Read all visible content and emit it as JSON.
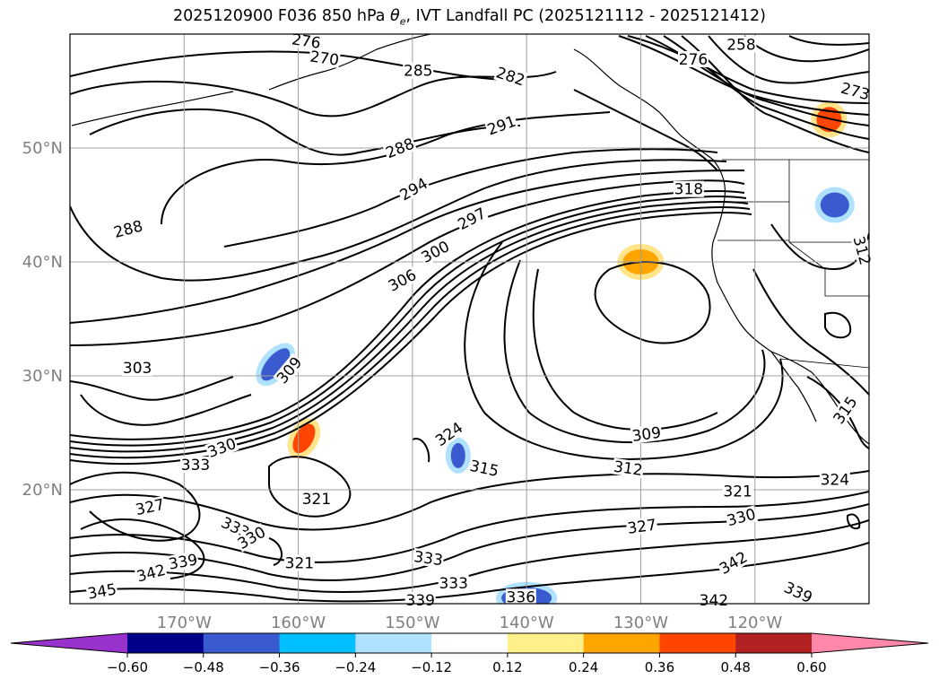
{
  "title": {
    "prefix": "2025120900 F036 850 hPa ",
    "symbol": "θ",
    "subscript": "e",
    "suffix": ", IVT Landfall PC (2025121112 - 2025121412)"
  },
  "map": {
    "lon_range": [
      -180,
      -110
    ],
    "lat_range": [
      10,
      60
    ],
    "lon_gridlines": [
      -170,
      -160,
      -150,
      -140,
      -130,
      -120
    ],
    "lat_gridlines": [
      20,
      30,
      40,
      50
    ],
    "lon_labels": [
      "170°W",
      "160°W",
      "150°W",
      "140°W",
      "130°W",
      "120°W"
    ],
    "lat_labels": [
      "20°N",
      "30°N",
      "40°N",
      "50°N"
    ],
    "axis_label_color": "#808080",
    "contour_color": "#000000",
    "contour_labels": [
      {
        "text": "270",
        "lon": -157.7,
        "lat": 57.9,
        "rot": -8
      },
      {
        "text": "276",
        "lon": -159.3,
        "lat": 59.4,
        "rot": -8
      },
      {
        "text": "285",
        "lon": -149.5,
        "lat": 56.8,
        "rot": 0
      },
      {
        "text": "282",
        "lon": -141.4,
        "lat": 56.3,
        "rot": -18
      },
      {
        "text": "258",
        "lon": -121.2,
        "lat": 59.1,
        "rot": 0
      },
      {
        "text": "276",
        "lon": -125.4,
        "lat": 57.8,
        "rot": 0
      },
      {
        "text": "273",
        "lon": -111.2,
        "lat": 55.0,
        "rot": -15
      },
      {
        "text": "291",
        "lon": -142.2,
        "lat": 52.0,
        "rot": 20
      },
      {
        "text": "288",
        "lon": -151.1,
        "lat": 50.0,
        "rot": 22
      },
      {
        "text": "294",
        "lon": -149.9,
        "lat": 46.4,
        "rot": 30
      },
      {
        "text": "318",
        "lon": -125.8,
        "lat": 46.4,
        "rot": 0
      },
      {
        "text": "288",
        "lon": -174.9,
        "lat": 42.9,
        "rot": 15
      },
      {
        "text": "297",
        "lon": -144.8,
        "lat": 43.8,
        "rot": 28
      },
      {
        "text": "300",
        "lon": -148.0,
        "lat": 40.9,
        "rot": 28
      },
      {
        "text": "306",
        "lon": -150.9,
        "lat": 38.4,
        "rot": 28
      },
      {
        "text": "312",
        "lon": -110.6,
        "lat": 41.0,
        "rot": -75
      },
      {
        "text": "303",
        "lon": -174.1,
        "lat": 30.7,
        "rot": 0
      },
      {
        "text": "309",
        "lon": -160.8,
        "lat": 30.5,
        "rot": 50
      },
      {
        "text": "324",
        "lon": -146.8,
        "lat": 24.9,
        "rot": 35
      },
      {
        "text": "309",
        "lon": -129.5,
        "lat": 24.9,
        "rot": 8
      },
      {
        "text": "315",
        "lon": -112.1,
        "lat": 27.0,
        "rot": 55
      },
      {
        "text": "330",
        "lon": -166.7,
        "lat": 23.7,
        "rot": 20
      },
      {
        "text": "333",
        "lon": -169.0,
        "lat": 22.2,
        "rot": 0
      },
      {
        "text": "315",
        "lon": -143.7,
        "lat": 21.9,
        "rot": -12
      },
      {
        "text": "312",
        "lon": -131.1,
        "lat": 21.9,
        "rot": -8
      },
      {
        "text": "321",
        "lon": -121.5,
        "lat": 19.9,
        "rot": 0
      },
      {
        "text": "324",
        "lon": -113.0,
        "lat": 20.9,
        "rot": 0
      },
      {
        "text": "321",
        "lon": -158.4,
        "lat": 19.2,
        "rot": 0
      },
      {
        "text": "327",
        "lon": -173.0,
        "lat": 18.5,
        "rot": 12
      },
      {
        "text": "327",
        "lon": -129.9,
        "lat": 16.8,
        "rot": 8
      },
      {
        "text": "330",
        "lon": -121.2,
        "lat": 17.6,
        "rot": 15
      },
      {
        "text": "333",
        "lon": -165.5,
        "lat": 16.7,
        "rot": -25
      },
      {
        "text": "330",
        "lon": -164.1,
        "lat": 15.8,
        "rot": 30
      },
      {
        "text": "321",
        "lon": -159.9,
        "lat": 13.6,
        "rot": 0
      },
      {
        "text": "333",
        "lon": -148.6,
        "lat": 14.0,
        "rot": -8
      },
      {
        "text": "339",
        "lon": -170.1,
        "lat": 13.7,
        "rot": 10
      },
      {
        "text": "342",
        "lon": -172.9,
        "lat": 12.7,
        "rot": 15
      },
      {
        "text": "345",
        "lon": -177.2,
        "lat": 11.1,
        "rot": 10
      },
      {
        "text": "342",
        "lon": -121.9,
        "lat": 13.6,
        "rot": 30
      },
      {
        "text": "333",
        "lon": -146.4,
        "lat": 11.8,
        "rot": 0
      },
      {
        "text": "336",
        "lon": -140.5,
        "lat": 10.6,
        "rot": 0
      },
      {
        "text": "339",
        "lon": -149.3,
        "lat": 10.3,
        "rot": 0
      },
      {
        "text": "342",
        "lon": -123.6,
        "lat": 10.3,
        "rot": 0
      },
      {
        "text": "339",
        "lon": -116.2,
        "lat": 11.0,
        "rot": -25
      }
    ],
    "shaded_blobs": [
      {
        "lon": -162.0,
        "lat": 31.0,
        "rx": 10,
        "ry": 22,
        "rot": 40,
        "color": "#3a5bd0"
      },
      {
        "lon": -146.0,
        "lat": 23.0,
        "rx": 8,
        "ry": 14,
        "rot": 0,
        "color": "#3a5bd0"
      },
      {
        "lon": -159.5,
        "lat": 24.5,
        "rx": 10,
        "ry": 18,
        "rot": 30,
        "color": "#ff4500"
      },
      {
        "lon": -140.0,
        "lat": 10.5,
        "rx": 28,
        "ry": 12,
        "rot": 0,
        "color": "#3a5bd0"
      },
      {
        "lon": -113.0,
        "lat": 45.0,
        "rx": 16,
        "ry": 14,
        "rot": 0,
        "color": "#3a5bd0"
      },
      {
        "lon": -113.5,
        "lat": 52.5,
        "rx": 14,
        "ry": 14,
        "rot": 0,
        "color": "#ff4500"
      },
      {
        "lon": -130.0,
        "lat": 40.0,
        "rx": 20,
        "ry": 14,
        "rot": 0,
        "color": "#ffa500"
      }
    ],
    "colorbar": {
      "colors": [
        "#9932cc",
        "#00008b",
        "#3a5bd0",
        "#00bfff",
        "#afe2ff",
        "#ffffff",
        "#fff08a",
        "#ffa500",
        "#ff4500",
        "#b22222",
        "#ff88aa"
      ],
      "tick_labels": [
        "−0.60",
        "−0.48",
        "−0.36",
        "−0.24",
        "−0.12",
        "0.12",
        "0.24",
        "0.36",
        "0.48",
        "0.60"
      ]
    }
  }
}
